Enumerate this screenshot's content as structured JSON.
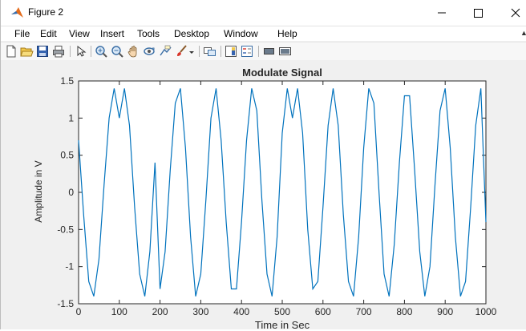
{
  "window": {
    "title": "Figure 2",
    "controls": {
      "minimize": "—",
      "maximize": "☐",
      "close": "✕"
    }
  },
  "menu": {
    "items": [
      "File",
      "Edit",
      "View",
      "Insert",
      "Tools",
      "Desktop",
      "Window",
      "Help"
    ]
  },
  "toolbar": {
    "icons": [
      "new-figure-icon",
      "open-file-icon",
      "save-icon",
      "print-icon",
      "pointer-icon",
      "zoom-in-icon",
      "zoom-out-icon",
      "pan-icon",
      "rotate-3d-icon",
      "data-cursor-icon",
      "brush-icon",
      "brush-dropdown-icon",
      "link-plot-icon",
      "colorbar-icon",
      "legend-icon",
      "hide-plot-tools-icon",
      "show-plot-tools-icon"
    ]
  },
  "chart_data": {
    "type": "line",
    "title": "Modulate Signal",
    "xlabel": "Time in Sec",
    "ylabel": "Amplitude in V",
    "xlim": [
      0,
      1000
    ],
    "ylim": [
      -1.5,
      1.5
    ],
    "xticks": [
      0,
      100,
      200,
      300,
      400,
      500,
      600,
      700,
      800,
      900,
      1000
    ],
    "yticks": [
      -1.5,
      -1,
      -0.5,
      0,
      0.5,
      1,
      1.5
    ],
    "xtick_labels": [
      "0",
      "100",
      "200",
      "300",
      "400",
      "500",
      "600",
      "700",
      "800",
      "900",
      "1000"
    ],
    "ytick_labels": [
      "-1.5",
      "-1",
      "-0.5",
      "0",
      "0.5",
      "1",
      "1.5"
    ],
    "grid": false,
    "line_color": "#0072BD",
    "series": [
      {
        "x": [
          0,
          12.5,
          25,
          37.5,
          50,
          62.5,
          75,
          87.5,
          100,
          112.5,
          125,
          137.5,
          150,
          162.5,
          175,
          187.5,
          200,
          212.5,
          225,
          237.5,
          250,
          262.5,
          275,
          287.5,
          300,
          312.5,
          325,
          337.5,
          350,
          362.5,
          375,
          387.5,
          400,
          412.5,
          425,
          437.5,
          450,
          462.5,
          475,
          487.5,
          500,
          512.5,
          525,
          537.5,
          550,
          562.5,
          575,
          587.5,
          600,
          612.5,
          625,
          637.5,
          650,
          662.5,
          675,
          687.5,
          700,
          712.5,
          725,
          737.5,
          750,
          762.5,
          775,
          787.5,
          800,
          812.5,
          825,
          837.5,
          850,
          862.5,
          875,
          887.5,
          900,
          912.5,
          925,
          937.5,
          950,
          962.5,
          975,
          987.5,
          1000
        ],
        "y": [
          0.7,
          -0.3,
          -1.2,
          -1.4,
          -0.9,
          0.1,
          1.0,
          1.4,
          1.0,
          1.4,
          0.9,
          -0.2,
          -1.1,
          -1.4,
          -0.8,
          0.4,
          -1.3,
          -0.8,
          0.3,
          1.2,
          1.4,
          0.6,
          -0.6,
          -1.4,
          -1.1,
          -0.1,
          1.0,
          1.4,
          0.7,
          -0.4,
          -1.3,
          -1.3,
          -0.4,
          0.7,
          1.4,
          1.1,
          -0.1,
          -1.1,
          -1.4,
          -0.6,
          0.8,
          1.4,
          1.0,
          1.4,
          0.8,
          -0.5,
          -1.3,
          -1.2,
          -0.2,
          0.9,
          1.4,
          0.9,
          -0.3,
          -1.2,
          -1.4,
          -0.6,
          0.6,
          1.4,
          1.2,
          0.0,
          -1.1,
          -1.4,
          -0.7,
          0.4,
          1.3,
          1.3,
          0.3,
          -0.8,
          -1.4,
          -1.0,
          0.1,
          1.1,
          1.4,
          0.6,
          -0.6,
          -1.4,
          -1.2,
          -0.2,
          0.9,
          1.4,
          -0.4
        ]
      }
    ]
  }
}
